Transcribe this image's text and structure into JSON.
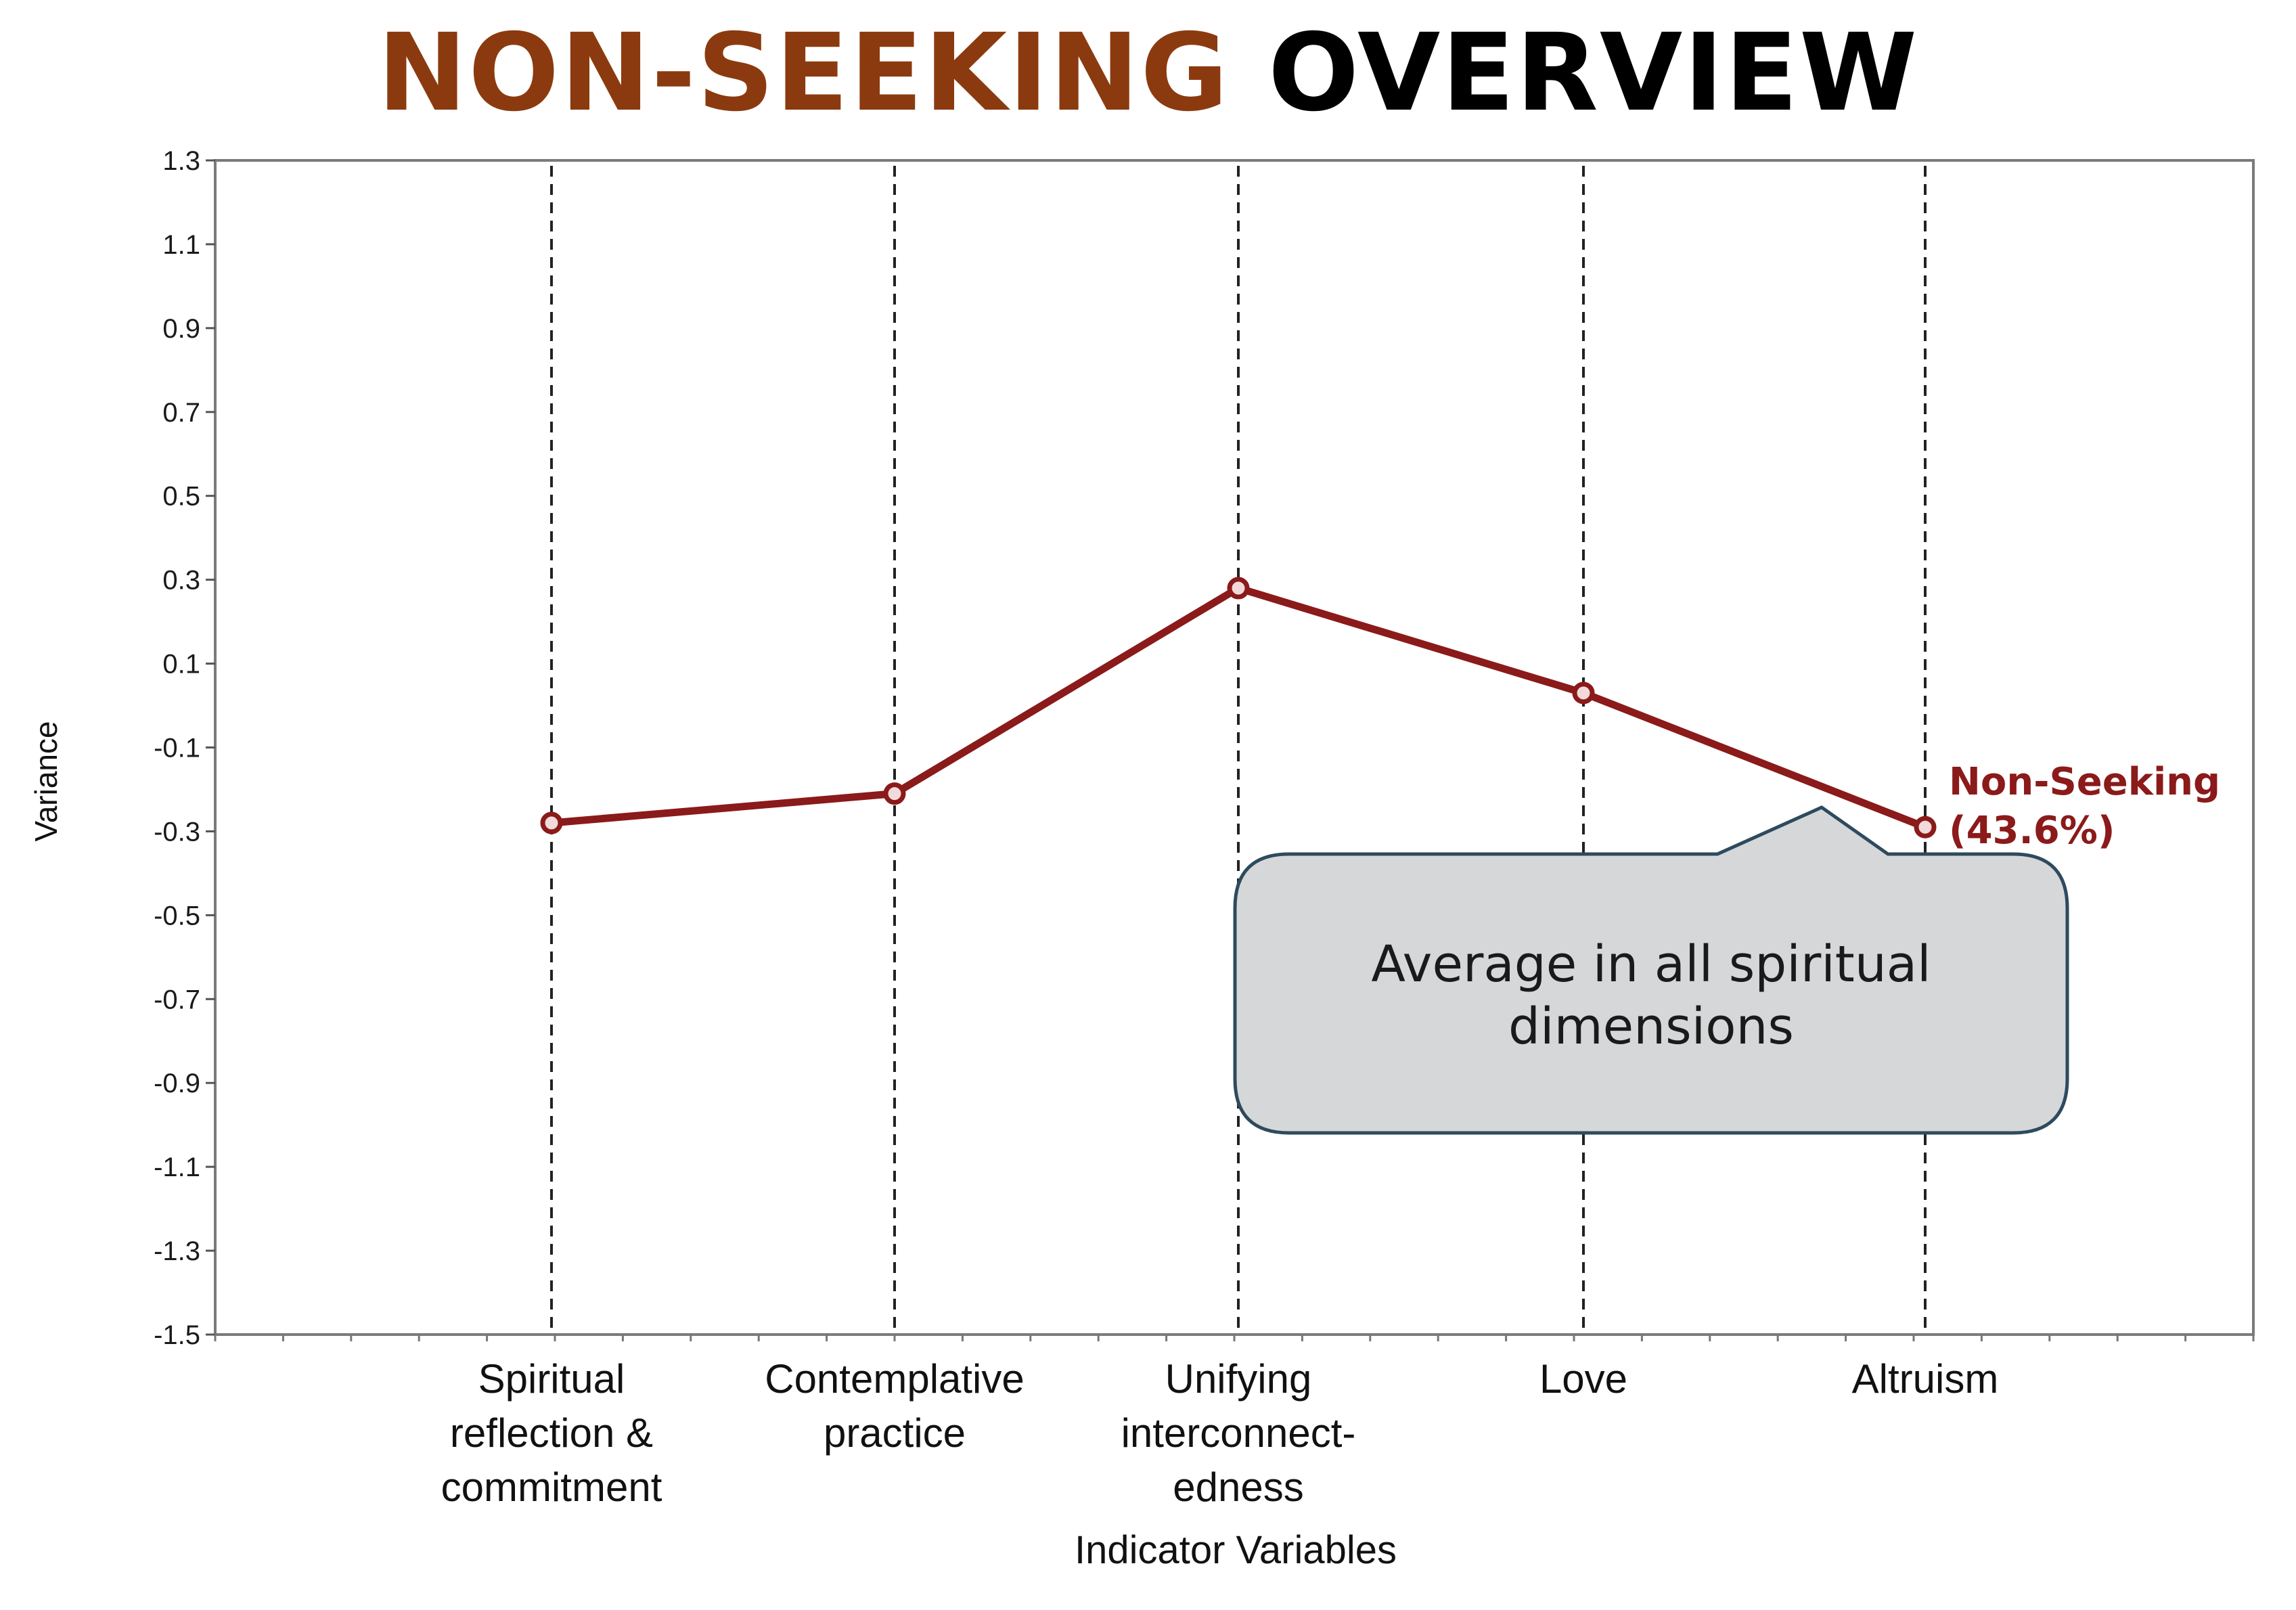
{
  "header": {
    "title_accent": "NON-SEEKING",
    "title_rest": "OVERVIEW"
  },
  "colors": {
    "accent": "#8b3a0f",
    "series": "#8b1a1a",
    "callout_fill": "#d6d7d9",
    "callout_stroke": "#2e4a5e"
  },
  "chart_data": {
    "type": "line",
    "title": "NON-SEEKING OVERVIEW",
    "xlabel": "Indicator Variables",
    "ylabel": "Variance",
    "ylim": [
      -1.5,
      1.3
    ],
    "yticks": [
      "1.3",
      "1.1",
      "0.9",
      "0.7",
      "0.5",
      "0.3",
      "0.1",
      "-0.1",
      "-0.3",
      "-0.5",
      "-0.7",
      "-0.9",
      "-1.1",
      "-1.3",
      "-1.5"
    ],
    "categories": [
      [
        "Spiritual",
        "reflection &",
        "commitment"
      ],
      [
        "Contemplative",
        "practice"
      ],
      [
        "Unifying",
        "interconnect-",
        "edness"
      ],
      [
        "Love"
      ],
      [
        "Altruism"
      ]
    ],
    "grid": "dashed vertical lines at categories",
    "series": [
      {
        "name": "Non-Seeking (43.6%)",
        "label_lines": [
          "Non-Seeking",
          "(43.6%)"
        ],
        "values": [
          -0.28,
          -0.21,
          0.28,
          0.03,
          -0.29
        ]
      }
    ],
    "annotation": {
      "lines": [
        "Average in all spiritual",
        "dimensions"
      ]
    }
  }
}
